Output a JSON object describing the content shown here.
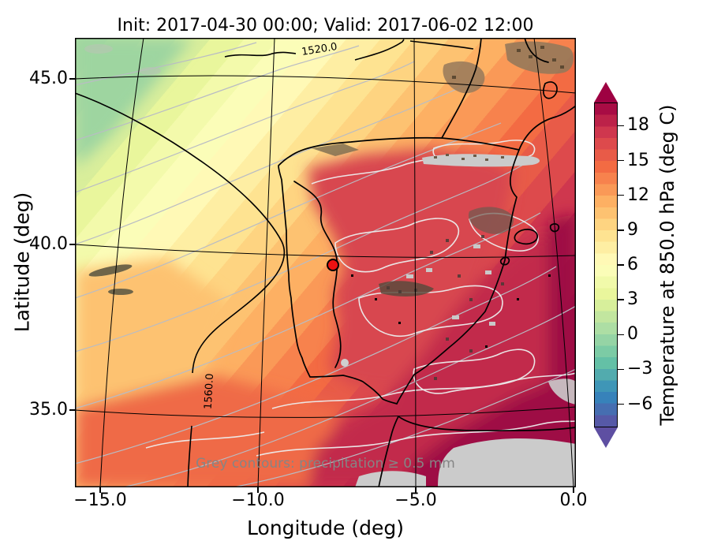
{
  "title": "Init: 2017-04-30 00:00; Valid: 2017-06-02 12:00",
  "axes": {
    "xlabel": "Longitude (deg)",
    "ylabel": "Latitude (deg)",
    "x_ticks": [
      "−15.0",
      "−10.0",
      "−5.0",
      "0.0"
    ],
    "y_ticks": [
      "45.0",
      "40.0",
      "35.0"
    ]
  },
  "annotation": "Grey contours: precipitation ≥ 0.5 mm",
  "colorbar": {
    "label": "Temperature at 850.0 hPa (deg C)",
    "ticks": [
      "18",
      "15",
      "12",
      "9",
      "6",
      "3",
      "0",
      "−3",
      "−6"
    ],
    "tick_values": [
      18,
      15,
      12,
      9,
      6,
      3,
      0,
      -3,
      -6
    ],
    "vmin": -8,
    "vmax": 20,
    "over_color": "#9e0142",
    "under_color": "#5e4fa2",
    "band_colors": [
      "#5659a7",
      "#466eb1",
      "#3782ba",
      "#3f96b7",
      "#52abae",
      "#64c0a6",
      "#7ccba5",
      "#95d4a5",
      "#addea4",
      "#c2e69f",
      "#d7ef9b",
      "#e9f69c",
      "#f1faaa",
      "#fbfdb8",
      "#fff9b6",
      "#feeea3",
      "#fee391",
      "#fed481",
      "#fdc271",
      "#fdb063",
      "#fa9957",
      "#f7824d",
      "#f36b43",
      "#e85b48",
      "#dd4a4c",
      "#cf374e",
      "#bc2249",
      "#a80c44"
    ]
  },
  "map": {
    "band_colors": [
      "#a8d9a0",
      "#b7df9e",
      "#c9e69d",
      "#d9ee9b",
      "#e9f69c",
      "#f3faab",
      "#fbfdb8",
      "#fff9b6",
      "#feeea3",
      "#fee391",
      "#fed481",
      "#fdc271",
      "#fdb063",
      "#fa9957",
      "#f7824d",
      "#f36b43",
      "#e85b48",
      "#dd4a4c",
      "#cf374e",
      "#bc2249",
      "#a80c44",
      "#9e0142"
    ],
    "overlay_colors": {
      "iberia_warm": "#d8464f",
      "southeast_hot": "#c22a4b",
      "africa_hottest": "#9e0e44",
      "northwest_cool": "#9ed5a0",
      "southwest_ocean": "#ef6a46",
      "west_edge": "#fdc271",
      "terrain_grey": "#cbcbcb",
      "terrain_brown": "#96795a"
    },
    "contour_labels": [
      "1520.0",
      "1560.0"
    ],
    "grid_color": "#000000",
    "precip_contour_color": "#ededed",
    "band_edge_color": "#b9bcc4",
    "marker_color": "#ee1111"
  },
  "chart_data": {
    "type": "filled_contour_map",
    "title": "Init: 2017-04-30 00:00; Valid: 2017-06-02 12:00",
    "field": "Temperature at 850.0 hPa (deg C)",
    "init_time": "2017-04-30 00:00",
    "valid_time": "2017-06-02 12:00",
    "xlabel": "Longitude (deg)",
    "ylabel": "Latitude (deg)",
    "xlim": [
      -15.8,
      0.1
    ],
    "ylim": [
      32.7,
      46.2
    ],
    "x_ticks": [
      -15.0,
      -10.0,
      -5.0,
      0.0
    ],
    "y_ticks": [
      35.0,
      40.0,
      45.0
    ],
    "colormap": "Spectral_r",
    "colorbar_ticks": [
      18,
      15,
      12,
      9,
      6,
      3,
      0,
      -3,
      -6
    ],
    "colorbar_range": [
      -8,
      20
    ],
    "geopotential_contours": [
      1520.0,
      1560.0
    ],
    "precipitation_contour_threshold_mm": 0.5,
    "marker": {
      "lon": -7.6,
      "lat": 39.4,
      "style": "red circle with black edge"
    },
    "sample_points": [
      {
        "lon": -15.5,
        "lat": 45.8,
        "temp_c": 3
      },
      {
        "lon": -12.0,
        "lat": 44.0,
        "temp_c": 6
      },
      {
        "lon": -9.0,
        "lat": 42.5,
        "temp_c": 12
      },
      {
        "lon": -7.5,
        "lat": 39.4,
        "temp_c": 16
      },
      {
        "lon": -4.0,
        "lat": 40.0,
        "temp_c": 17
      },
      {
        "lon": -3.0,
        "lat": 36.0,
        "temp_c": 19
      },
      {
        "lon": -1.0,
        "lat": 34.0,
        "temp_c": 20
      },
      {
        "lon": -15.0,
        "lat": 33.5,
        "temp_c": 13
      },
      {
        "lon": -2.0,
        "lat": 45.0,
        "temp_c": 14
      }
    ]
  }
}
